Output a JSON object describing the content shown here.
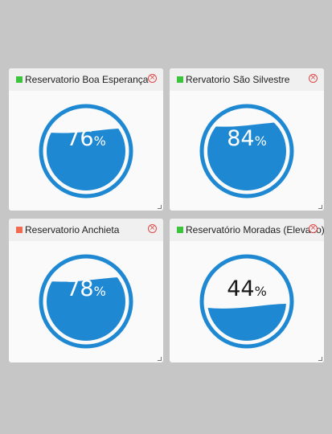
{
  "colors": {
    "gauge_fill": "#1e88d2",
    "status_ok": "#3cc43c",
    "status_alert": "#f26b50",
    "close": "#e04848"
  },
  "cards": [
    {
      "title": "Reservatorio Boa Esperança",
      "status": "ok",
      "level_percent": 76,
      "value_text": "76",
      "unit": "%",
      "close_icon": "close-circle-icon"
    },
    {
      "title": "Rervatorio São Silvestre",
      "status": "ok",
      "level_percent": 84,
      "value_text": "84",
      "unit": "%",
      "close_icon": "close-circle-icon"
    },
    {
      "title": "Reservatorio Anchieta",
      "status": "alert",
      "level_percent": 78,
      "value_text": "78",
      "unit": "%",
      "close_icon": "close-circle-icon"
    },
    {
      "title": "Reservatório Moradas (Elevado)",
      "status": "ok",
      "level_percent": 44,
      "value_text": "44",
      "unit": "%",
      "close_icon": "close-circle-icon"
    }
  ]
}
